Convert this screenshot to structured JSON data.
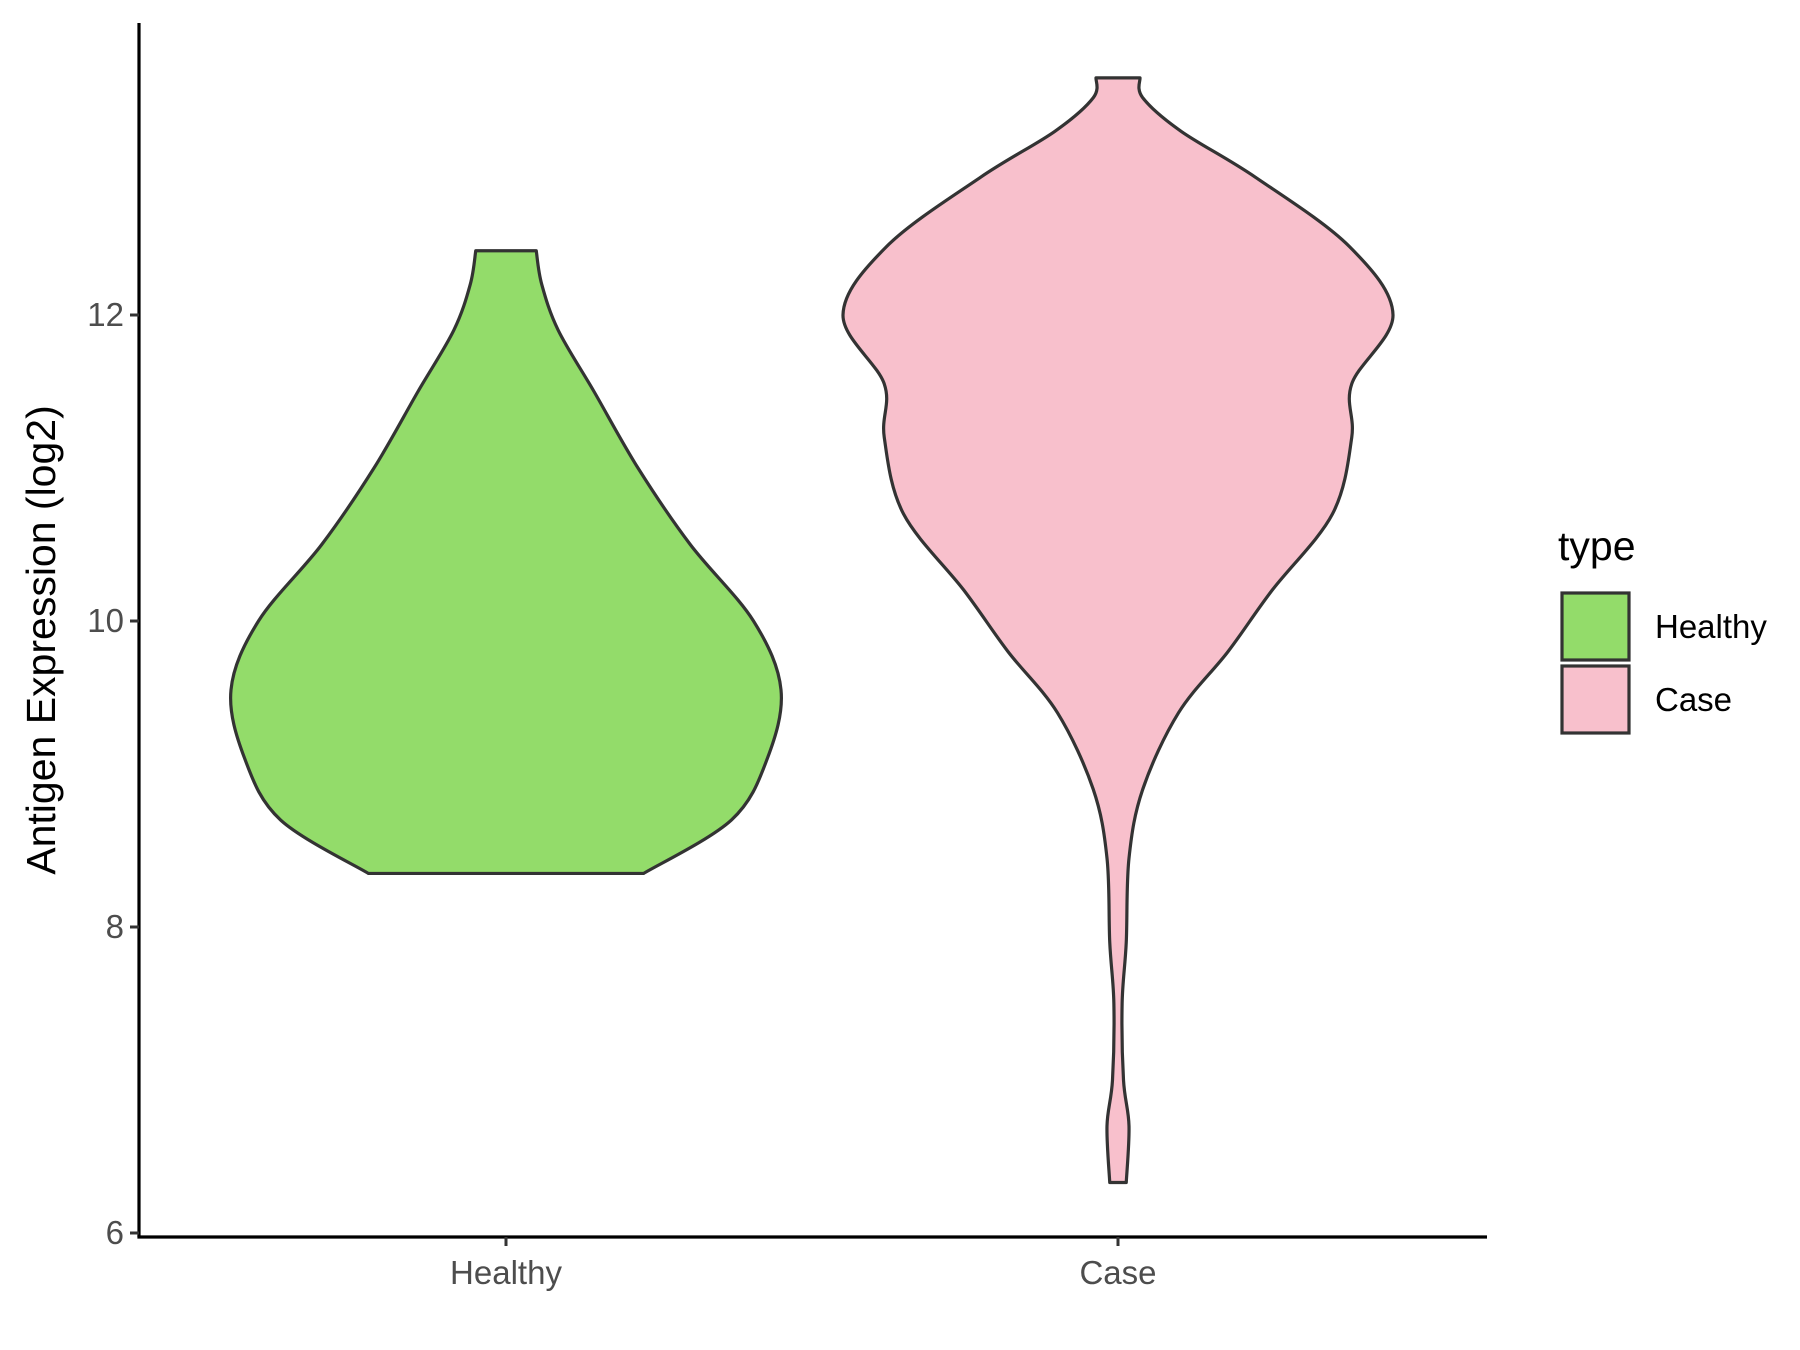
{
  "chart_data": {
    "type": "violin",
    "ylabel": "Antigen Expression (log2)",
    "xlabel": "",
    "ylim": [
      6,
      13.7
    ],
    "y_ticks": [
      "6",
      "8",
      "10",
      "12"
    ],
    "categories": [
      "Healthy",
      "Case"
    ],
    "grid": false,
    "legend": {
      "title": "type",
      "placement": "right",
      "items": [
        {
          "label": "Healthy",
          "color": "#93DC6A"
        },
        {
          "label": "Case",
          "color": "#F8C0CC"
        }
      ]
    },
    "series": [
      {
        "category": "Healthy",
        "color": "#93DC6A",
        "min": 8.35,
        "max": 12.42,
        "density_profile": [
          [
            8.35,
            0.5
          ],
          [
            8.7,
            0.82
          ],
          [
            9.1,
            0.95
          ],
          [
            9.55,
            1.0
          ],
          [
            10.0,
            0.9
          ],
          [
            10.5,
            0.67
          ],
          [
            11.0,
            0.48
          ],
          [
            11.5,
            0.32
          ],
          [
            11.9,
            0.19
          ],
          [
            12.2,
            0.13
          ],
          [
            12.42,
            0.11
          ]
        ]
      },
      {
        "category": "Case",
        "color": "#F8C0CC",
        "min": 6.33,
        "max": 13.55,
        "density_profile": [
          [
            6.33,
            0.03
          ],
          [
            6.7,
            0.04
          ],
          [
            7.0,
            0.02
          ],
          [
            7.5,
            0.015
          ],
          [
            7.9,
            0.03
          ],
          [
            8.45,
            0.04
          ],
          [
            8.9,
            0.09
          ],
          [
            9.4,
            0.22
          ],
          [
            9.8,
            0.4
          ],
          [
            10.2,
            0.56
          ],
          [
            10.7,
            0.78
          ],
          [
            11.2,
            0.85
          ],
          [
            11.55,
            0.85
          ],
          [
            12.0,
            1.0
          ],
          [
            12.45,
            0.84
          ],
          [
            12.9,
            0.5
          ],
          [
            13.2,
            0.23
          ],
          [
            13.42,
            0.09
          ],
          [
            13.55,
            0.08
          ]
        ]
      }
    ]
  }
}
